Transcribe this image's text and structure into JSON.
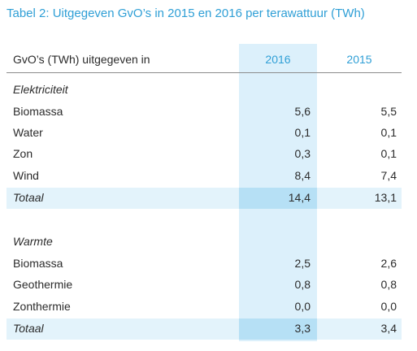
{
  "title": "Tabel 2: Uitgegeven GvO’s in 2015 en 2016 per terawattuur (TWh)",
  "header": {
    "label": "GvO’s (TWh) uitgegeven in",
    "col_2016": "2016",
    "col_2015": "2015"
  },
  "colors": {
    "accent": "#2f9fd6",
    "highlight_column": "#dcf0fb",
    "total_row": "#e3f3fb",
    "total_highlight": "#b6e0f5"
  },
  "sections": [
    {
      "name": "Elektriciteit",
      "rows": [
        {
          "label": "Biomassa",
          "v2016": "5,6",
          "v2015": "5,5"
        },
        {
          "label": "Water",
          "v2016": "0,1",
          "v2015": "0,1"
        },
        {
          "label": "Zon",
          "v2016": "0,3",
          "v2015": "0,1"
        },
        {
          "label": "Wind",
          "v2016": "8,4",
          "v2015": "7,4"
        }
      ],
      "total": {
        "label": "Totaal",
        "v2016": "14,4",
        "v2015": "13,1"
      }
    },
    {
      "name": "Warmte",
      "rows": [
        {
          "label": "Biomassa",
          "v2016": "2,5",
          "v2015": "2,6"
        },
        {
          "label": "Geothermie",
          "v2016": "0,8",
          "v2015": "0,8"
        },
        {
          "label": "Zonthermie",
          "v2016": "0,0",
          "v2015": "0,0"
        }
      ],
      "total": {
        "label": "Totaal",
        "v2016": "3,3",
        "v2015": "3,4"
      }
    }
  ]
}
